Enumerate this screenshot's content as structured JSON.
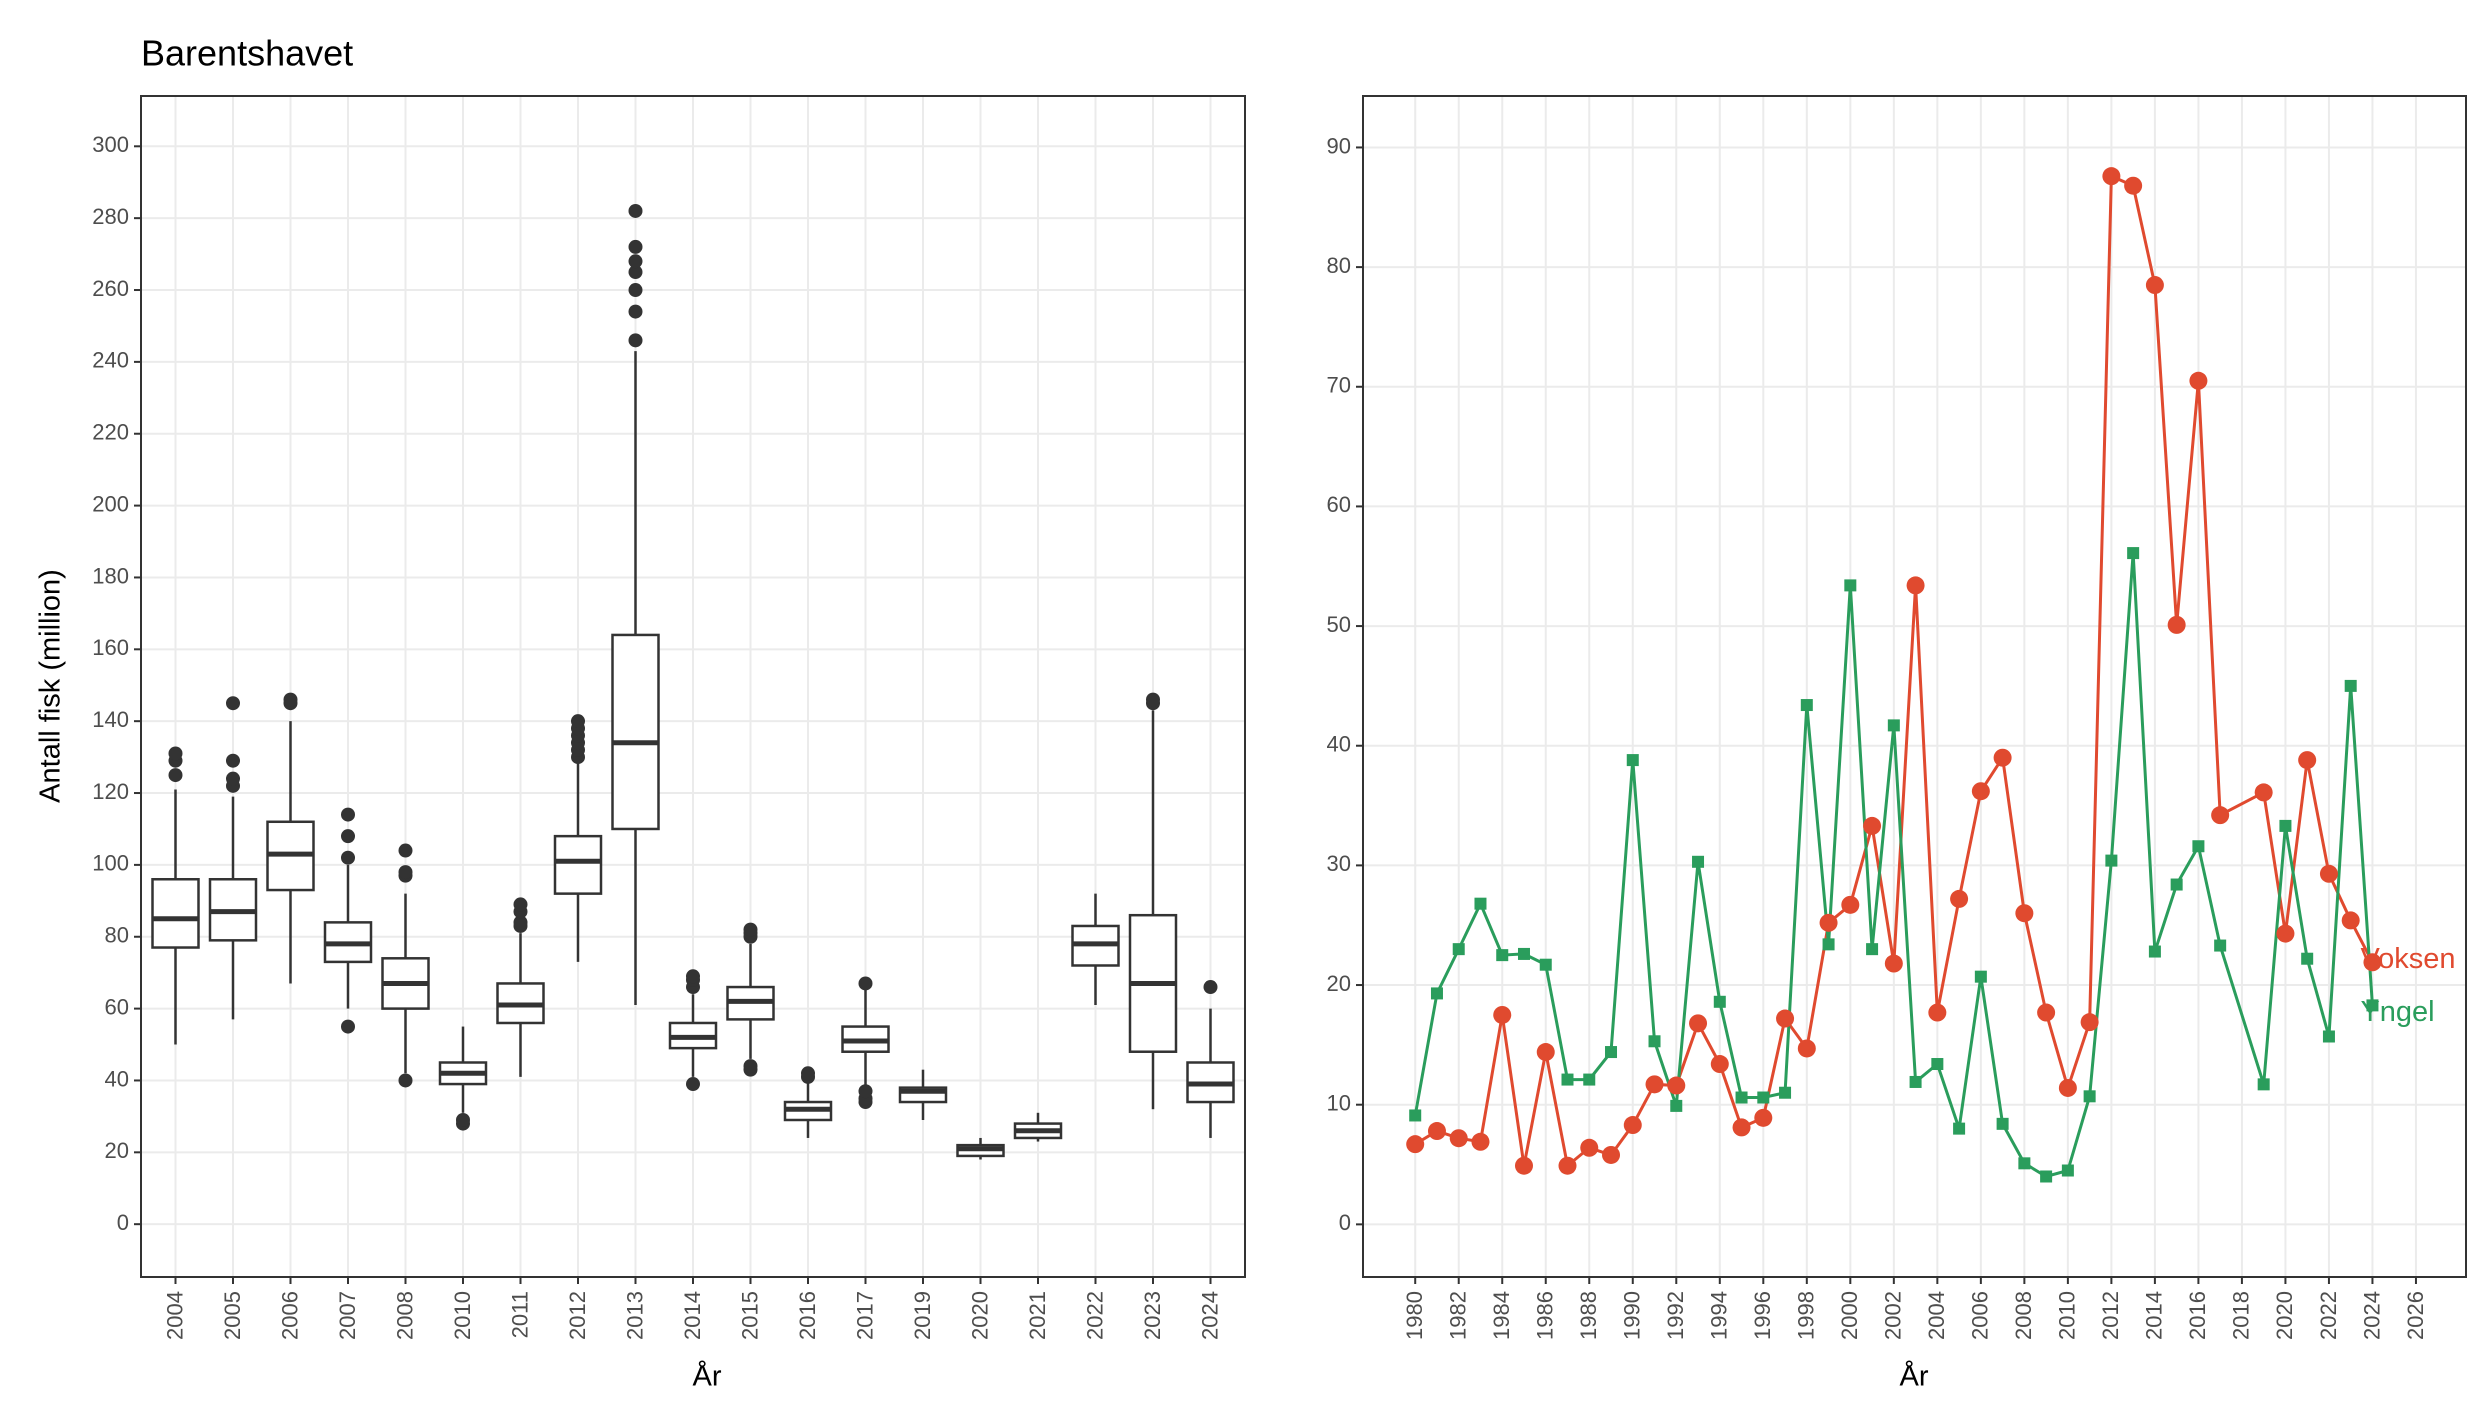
{
  "chart_data": [
    {
      "type": "box",
      "title": "Barentshavet",
      "x_label": "År",
      "y_label": "Antall fisk (million)",
      "categories": [
        "2004",
        "2005",
        "2006",
        "2007",
        "2008",
        "2010",
        "2011",
        "2012",
        "2013",
        "2014",
        "2015",
        "2016",
        "2017",
        "2019",
        "2020",
        "2021",
        "2022",
        "2023",
        "2024"
      ],
      "whisker_low": [
        50,
        57,
        67,
        60,
        42,
        31,
        41,
        73,
        61,
        41,
        46,
        24,
        38,
        29,
        18,
        23,
        61,
        32,
        24
      ],
      "q1": [
        77,
        79,
        93,
        73,
        60,
        39,
        56,
        92,
        110,
        49,
        57,
        29,
        48,
        34,
        19,
        24,
        72,
        48,
        34
      ],
      "median": [
        85,
        87,
        103,
        78,
        67,
        42,
        61,
        101,
        134,
        52,
        62,
        32,
        51,
        37,
        21,
        26,
        78,
        67,
        39
      ],
      "q3": [
        96,
        96,
        112,
        84,
        74,
        45,
        67,
        108,
        164,
        56,
        66,
        34,
        55,
        38,
        22,
        28,
        83,
        86,
        45
      ],
      "whisker_high": [
        121,
        119,
        140,
        100,
        92,
        55,
        81,
        129,
        243,
        64,
        78,
        40,
        66,
        43,
        24,
        31,
        92,
        143,
        60
      ],
      "outliers": [
        [
          125,
          129,
          131
        ],
        [
          122,
          124,
          129,
          145
        ],
        [
          145,
          146
        ],
        [
          55,
          102,
          108,
          114
        ],
        [
          40,
          97,
          98,
          104
        ],
        [
          28,
          29
        ],
        [
          83,
          84,
          87,
          89
        ],
        [
          130,
          132,
          134,
          136,
          138,
          140
        ],
        [
          246,
          254,
          260,
          265,
          268,
          272,
          282
        ],
        [
          39,
          66,
          68,
          69
        ],
        [
          43,
          44,
          80,
          81,
          82
        ],
        [
          41,
          42
        ],
        [
          34,
          35,
          37,
          67
        ],
        [],
        [],
        [],
        [],
        [
          145,
          146
        ],
        [
          66
        ]
      ],
      "color": "#333333",
      "ylim": [
        -14.7,
        314
      ],
      "yticks": [
        0,
        20,
        40,
        60,
        80,
        100,
        120,
        140,
        160,
        180,
        200,
        220,
        240,
        260,
        280,
        300
      ],
      "grid": true
    },
    {
      "type": "line",
      "x_label": "År",
      "x": [
        1980,
        1981,
        1982,
        1983,
        1984,
        1985,
        1986,
        1987,
        1988,
        1989,
        1990,
        1991,
        1992,
        1993,
        1994,
        1995,
        1996,
        1997,
        1998,
        1999,
        2000,
        2001,
        2002,
        2003,
        2004,
        2005,
        2006,
        2007,
        2008,
        2009,
        2010,
        2011,
        2012,
        2013,
        2014,
        2015,
        2016,
        2017,
        2019,
        2020,
        2021,
        2022,
        2023,
        2024
      ],
      "series": [
        {
          "name": "Voksen",
          "color": "#e04a2f",
          "marker": "circle",
          "values": [
            6.7,
            7.8,
            7.2,
            6.9,
            17.5,
            4.9,
            14.4,
            4.9,
            6.4,
            5.8,
            8.3,
            11.7,
            11.6,
            16.8,
            13.4,
            8.1,
            8.9,
            17.2,
            14.7,
            25.2,
            26.7,
            33.3,
            21.8,
            53.4,
            17.7,
            27.2,
            36.2,
            39.0,
            26.0,
            17.7,
            11.4,
            16.9,
            87.6,
            86.8,
            78.5,
            50.1,
            70.5,
            34.2,
            36.1,
            24.3,
            38.8,
            29.3,
            25.4,
            21.9
          ]
        },
        {
          "name": "Yngel",
          "color": "#2a9d5c",
          "marker": "square",
          "values": [
            9.1,
            19.3,
            23.0,
            26.8,
            22.5,
            22.6,
            21.7,
            12.1,
            12.1,
            14.4,
            38.8,
            15.3,
            9.9,
            30.3,
            18.6,
            10.6,
            10.6,
            11.0,
            43.4,
            23.4,
            53.4,
            23.0,
            41.7,
            11.9,
            13.4,
            8.0,
            20.7,
            8.4,
            5.1,
            4.0,
            4.5,
            10.7,
            30.4,
            56.1,
            22.8,
            28.4,
            31.6,
            23.3,
            11.7,
            33.3,
            22.2,
            15.7,
            45.0,
            18.3
          ]
        }
      ],
      "xlim": [
        1977.6,
        2028.3
      ],
      "xticks": [
        1980,
        1982,
        1984,
        1986,
        1988,
        1990,
        1992,
        1994,
        1996,
        1998,
        2000,
        2002,
        2004,
        2006,
        2008,
        2010,
        2012,
        2014,
        2016,
        2018,
        2020,
        2022,
        2024,
        2026
      ],
      "ylim": [
        -4.4,
        94.3
      ],
      "yticks": [
        0,
        10,
        20,
        30,
        40,
        50,
        60,
        70,
        80,
        90
      ],
      "grid": true
    }
  ]
}
